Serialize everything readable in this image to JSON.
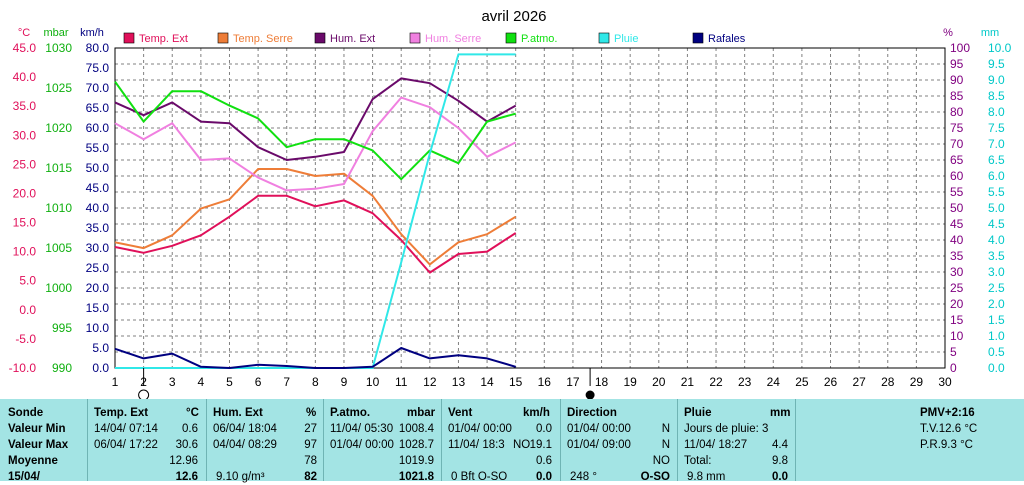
{
  "title": "avril 2026",
  "colors": {
    "temp_ext": "#e0105a",
    "temp_serre": "#ee7d38",
    "hum_ext": "#6a0a6a",
    "hum_serre": "#f080e0",
    "patmo": "#10e010",
    "pluie": "#30e8e8",
    "rafales": "#000080",
    "axis_temp": "#e0105a",
    "axis_press": "#10b010",
    "axis_wind": "#000080",
    "axis_hum": "#800080",
    "axis_rain": "#00c8c8",
    "panel_bg": "#a3e4e4",
    "grid": "#808080"
  },
  "chart_data": {
    "type": "line",
    "title": "avril 2026",
    "x": [
      1,
      2,
      3,
      4,
      5,
      6,
      7,
      8,
      9,
      10,
      11,
      12,
      13,
      14,
      15
    ],
    "xlim": [
      1,
      30
    ],
    "xticks": [
      "1",
      "2",
      "3",
      "4",
      "5",
      "6",
      "7",
      "8",
      "9",
      "10",
      "11",
      "12",
      "13",
      "14",
      "15",
      "16",
      "17",
      "18",
      "19",
      "20",
      "21",
      "22",
      "23",
      "24",
      "25",
      "26",
      "27",
      "28",
      "29",
      "30"
    ],
    "axes": {
      "temp": {
        "unit": "°C",
        "lim": [
          -10,
          45
        ],
        "ticks": [
          "45.0",
          "40.0",
          "35.0",
          "30.0",
          "25.0",
          "20.0",
          "15.0",
          "10.0",
          "5.0",
          "0.0",
          "-5.0",
          "-10.0"
        ]
      },
      "press": {
        "unit": "mbar",
        "lim": [
          990,
          1030
        ],
        "ticks": [
          "1030",
          "1025",
          "1020",
          "1015",
          "1010",
          "1005",
          "1000",
          "995",
          "990"
        ]
      },
      "wind": {
        "unit": "km/h",
        "lim": [
          0,
          80
        ],
        "ticks": [
          "80.0",
          "75.0",
          "70.0",
          "65.0",
          "60.0",
          "55.0",
          "50.0",
          "45.0",
          "40.0",
          "35.0",
          "30.0",
          "25.0",
          "20.0",
          "15.0",
          "10.0",
          "5.0",
          "0.0"
        ]
      },
      "hum": {
        "unit": "%",
        "lim": [
          0,
          100
        ],
        "ticks": [
          "100",
          "95",
          "90",
          "85",
          "80",
          "75",
          "70",
          "65",
          "60",
          "55",
          "50",
          "45",
          "40",
          "35",
          "30",
          "25",
          "20",
          "15",
          "10",
          "5",
          "0"
        ]
      },
      "rain": {
        "unit": "mm",
        "lim": [
          0,
          10
        ],
        "ticks": [
          "10.0",
          "9.5",
          "9.0",
          "8.5",
          "8.0",
          "7.5",
          "7.0",
          "6.5",
          "6.0",
          "5.5",
          "5.0",
          "4.5",
          "4.0",
          "3.5",
          "3.0",
          "2.5",
          "2.0",
          "1.5",
          "1.0",
          "0.5",
          "0.0"
        ]
      }
    },
    "series": [
      {
        "name": "Temp. Ext",
        "axis": "temp",
        "color_key": "temp_ext",
        "values": [
          10.8,
          9.8,
          11.0,
          12.8,
          16.0,
          19.6,
          19.6,
          17.8,
          18.8,
          16.6,
          12.0,
          6.4,
          9.6,
          10.0,
          13.2
        ]
      },
      {
        "name": "Temp. Serre",
        "axis": "temp",
        "color_key": "temp_serre",
        "values": [
          11.6,
          10.6,
          12.8,
          17.4,
          19.0,
          24.2,
          24.2,
          23.0,
          23.4,
          19.6,
          13.0,
          7.8,
          11.6,
          13.0,
          16.0
        ]
      },
      {
        "name": "Hum. Ext",
        "axis": "hum",
        "color_key": "hum_ext",
        "values": [
          83,
          79,
          83,
          77,
          76.5,
          69,
          65,
          66,
          67.5,
          84,
          90.5,
          89,
          83.5,
          77,
          82
        ]
      },
      {
        "name": "Hum. Serre",
        "axis": "hum",
        "color_key": "hum_serre",
        "values": [
          76.5,
          71.5,
          76.5,
          65,
          65.5,
          59.5,
          55.5,
          56,
          57.5,
          74,
          84.5,
          81.5,
          75,
          66,
          70.5
        ]
      },
      {
        "name": "P.atmo.",
        "axis": "press",
        "color_key": "patmo",
        "values": [
          1025.8,
          1020.8,
          1024.6,
          1024.6,
          1022.8,
          1021.2,
          1017.6,
          1018.6,
          1018.6,
          1017.2,
          1013.6,
          1017.2,
          1015.6,
          1020.8,
          1021.8
        ]
      },
      {
        "name": "Pluie",
        "axis": "rain",
        "color_key": "pluie",
        "values": [
          0,
          0,
          0,
          0,
          0,
          0,
          0,
          0,
          0,
          0,
          3.3,
          6.7,
          9.8,
          9.8,
          9.8
        ]
      },
      {
        "name": "Rafales",
        "axis": "wind",
        "color_key": "rafales",
        "values": [
          4.8,
          2.4,
          3.6,
          0.3,
          0,
          0.8,
          0.5,
          0,
          0,
          0.3,
          5.0,
          2.4,
          3.2,
          2.4,
          0.3
        ]
      }
    ],
    "legend_position": "top",
    "grid": true,
    "markers": [
      {
        "day": 2,
        "symbol": "first-quarter-moon"
      },
      {
        "day": 17.6,
        "symbol": "new-moon"
      }
    ]
  },
  "table": {
    "col1": {
      "h": "Sonde",
      "r1": "Valeur Min",
      "r2": "Valeur Max",
      "r3": "Moyenne",
      "r4": "15/04/"
    },
    "temp": {
      "h": "Temp. Ext",
      "unit": "°C",
      "min_t": "14/04/  07:14",
      "min_v": "0.6",
      "max_t": "06/04/  17:22",
      "max_v": "30.6",
      "avg": "12.96",
      "cur": "12.6"
    },
    "hum": {
      "h": "Hum. Ext",
      "unit": "%",
      "min_t": "06/04/  18:04",
      "min_v": "27",
      "max_t": "04/04/  08:29",
      "max_v": "97",
      "avg": "78",
      "cur_t": "9.10 g/m³",
      "cur": "82"
    },
    "press": {
      "h": "P.atmo.",
      "unit": "mbar",
      "min_t": "11/04/  05:30",
      "min_v": "1008.4",
      "max_t": "01/04/  00:00",
      "max_v": "1028.7",
      "avg": "1019.9",
      "cur": "1021.8"
    },
    "wind": {
      "h": "Vent",
      "unit": "km/h",
      "min_t": "01/04/  00:00",
      "min_v": "0.0",
      "max_t": "11/04/  18:3",
      "max_dir": "NO",
      "max_v": "19.1",
      "avg": "0.6",
      "cur_t": "0 Bft O-SO",
      "cur": "0.0"
    },
    "dir": {
      "h": "Direction",
      "min_t": "01/04/  00:00",
      "min_v": "N",
      "max_t": "01/04/  09:00",
      "max_v": "N",
      "avg": "NO",
      "cur_t": "248 °",
      "cur": "O-SO"
    },
    "rain": {
      "h": "Pluie",
      "unit": "mm",
      "days": "Jours de pluie: 3",
      "max_t": "11/04/  18:27",
      "max_v": "4.4",
      "total_l": "Total:",
      "total_v": "9.8",
      "cur_t": "9.8 mm",
      "cur": "0.0"
    },
    "pmv": {
      "h": "PMV+2:16",
      "tv": "T.V.12.6 °C",
      "pr": "P.R.9.3 °C"
    }
  }
}
